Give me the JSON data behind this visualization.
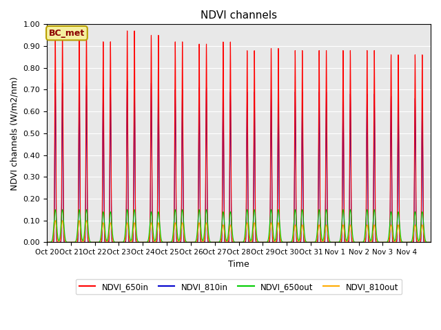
{
  "title": "NDVI channels",
  "xlabel": "Time",
  "ylabel": "NDVI channels (W/m2/nm)",
  "ylim": [
    0.0,
    1.0
  ],
  "yticks": [
    0.0,
    0.1,
    0.2,
    0.3,
    0.4,
    0.5,
    0.6,
    0.7,
    0.8,
    0.9,
    1.0
  ],
  "background_color": "#e8e8e8",
  "annotation_text": "BC_met",
  "annotation_color": "#8B0000",
  "annotation_bg": "#f5f0a0",
  "annotation_edge": "#b8a000",
  "num_cycles": 16,
  "days": [
    "Oct 20",
    "Oct 21",
    "Oct 22",
    "Oct 23",
    "Oct 24",
    "Oct 25",
    "Oct 26",
    "Oct 27",
    "Oct 28",
    "Oct 29",
    "Oct 30",
    "Oct 31",
    "Nov 1",
    "Nov 2",
    "Nov 3",
    "Nov 4"
  ],
  "peak_650in": [
    0.96,
    0.96,
    0.92,
    0.97,
    0.95,
    0.92,
    0.91,
    0.92,
    0.88,
    0.89,
    0.88,
    0.88,
    0.88,
    0.88,
    0.86,
    0.86
  ],
  "peak_810in": [
    0.73,
    0.72,
    0.71,
    0.74,
    0.73,
    0.7,
    0.71,
    0.69,
    0.69,
    0.7,
    0.69,
    0.69,
    0.68,
    0.68,
    0.67,
    0.66
  ],
  "peak_650out": [
    0.15,
    0.15,
    0.14,
    0.15,
    0.14,
    0.15,
    0.15,
    0.14,
    0.15,
    0.15,
    0.15,
    0.15,
    0.15,
    0.15,
    0.14,
    0.14
  ],
  "peak_810out": [
    0.1,
    0.1,
    0.09,
    0.09,
    0.09,
    0.09,
    0.09,
    0.08,
    0.09,
    0.09,
    0.08,
    0.08,
    0.08,
    0.08,
    0.08,
    0.08
  ],
  "color_650in": "#ff0000",
  "color_810in": "#0000cc",
  "color_650out": "#00cc00",
  "color_810out": "#ffaa00",
  "legend_labels": [
    "NDVI_650in",
    "NDVI_810in",
    "NDVI_650out",
    "NDVI_810out"
  ]
}
